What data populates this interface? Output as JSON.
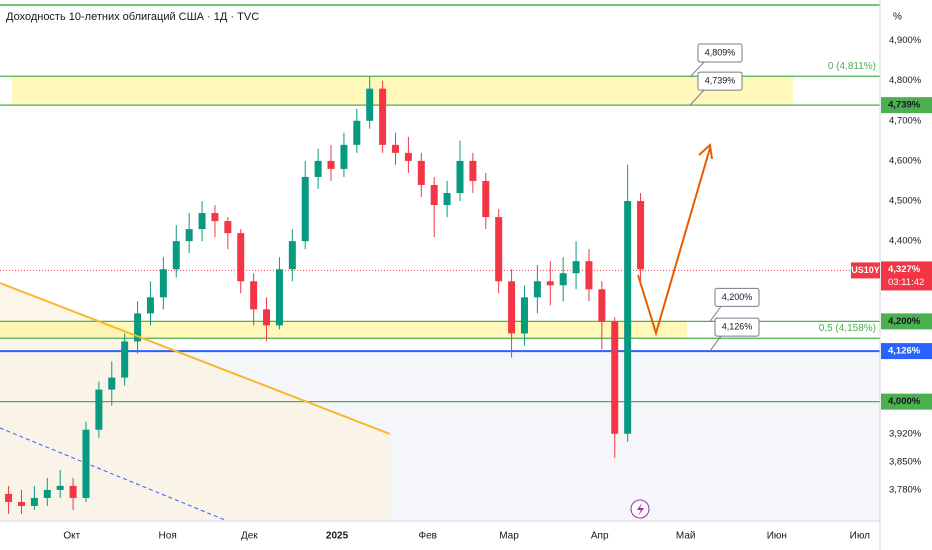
{
  "chart_data": {
    "type": "candlestick",
    "title": "Доходность 10-летних облигаций США · 1Д · TVC",
    "unit": "%",
    "up_color": "#089981",
    "down_color": "#f23645",
    "x": [
      2,
      5,
      8,
      11,
      14,
      17,
      20,
      23,
      26,
      29,
      32,
      35,
      38,
      41,
      44,
      47,
      50,
      53,
      56,
      59,
      62,
      65,
      68,
      71,
      74,
      77,
      80,
      83,
      86,
      89,
      92,
      95,
      98,
      101,
      104,
      107,
      110,
      113,
      116,
      119,
      122,
      125,
      128,
      131,
      134,
      137,
      140,
      143,
      146,
      149
    ],
    "open": [
      3.77,
      3.75,
      3.74,
      3.76,
      3.78,
      3.79,
      3.76,
      3.93,
      4.03,
      4.06,
      4.15,
      4.22,
      4.26,
      4.33,
      4.4,
      4.43,
      4.47,
      4.45,
      4.42,
      4.3,
      4.23,
      4.19,
      4.33,
      4.4,
      4.56,
      4.6,
      4.58,
      4.64,
      4.7,
      4.78,
      4.64,
      4.62,
      4.6,
      4.54,
      4.49,
      4.52,
      4.6,
      4.55,
      4.46,
      4.3,
      4.17,
      4.26,
      4.3,
      4.29,
      4.32,
      4.35,
      4.28,
      4.2,
      3.92,
      4.5
    ],
    "high": [
      3.79,
      3.78,
      3.79,
      3.81,
      3.83,
      3.81,
      3.95,
      4.05,
      4.1,
      4.17,
      4.25,
      4.3,
      4.36,
      4.44,
      4.47,
      4.5,
      4.49,
      4.46,
      4.43,
      4.32,
      4.26,
      4.36,
      4.43,
      4.6,
      4.63,
      4.64,
      4.67,
      4.73,
      4.81,
      4.8,
      4.67,
      4.66,
      4.62,
      4.56,
      4.55,
      4.65,
      4.62,
      4.57,
      4.48,
      4.33,
      4.29,
      4.34,
      4.35,
      4.36,
      4.4,
      4.38,
      4.3,
      4.21,
      4.59,
      4.52
    ],
    "low": [
      3.72,
      3.72,
      3.73,
      3.74,
      3.76,
      3.73,
      3.75,
      3.91,
      3.99,
      4.04,
      4.12,
      4.19,
      4.23,
      4.31,
      4.37,
      4.4,
      4.41,
      4.38,
      4.27,
      4.19,
      4.15,
      4.18,
      4.3,
      4.38,
      4.53,
      4.55,
      4.56,
      4.62,
      4.68,
      4.62,
      4.59,
      4.57,
      4.51,
      4.41,
      4.46,
      4.5,
      4.52,
      4.43,
      4.27,
      4.11,
      4.14,
      4.22,
      4.24,
      4.25,
      4.28,
      4.25,
      4.13,
      3.86,
      3.9,
      4.3
    ],
    "close": [
      3.75,
      3.74,
      3.76,
      3.78,
      3.79,
      3.76,
      3.93,
      4.03,
      4.06,
      4.15,
      4.22,
      4.26,
      4.33,
      4.4,
      4.43,
      4.47,
      4.45,
      4.42,
      4.3,
      4.23,
      4.19,
      4.33,
      4.4,
      4.56,
      4.6,
      4.58,
      4.64,
      4.7,
      4.78,
      4.64,
      4.62,
      4.6,
      4.54,
      4.49,
      4.52,
      4.6,
      4.55,
      4.46,
      4.3,
      4.17,
      4.26,
      4.3,
      4.29,
      4.32,
      4.35,
      4.28,
      4.2,
      3.92,
      4.5,
      4.33
    ],
    "xlim": [
      0,
      204.7
    ],
    "ylim": [
      3.705,
      5.001
    ],
    "xticks": [
      {
        "value": 16.7,
        "label": "Окт"
      },
      {
        "value": 39,
        "label": "Ноя"
      },
      {
        "value": 58,
        "label": "Дек"
      },
      {
        "value": 78.4,
        "label": "2025"
      },
      {
        "value": 99.5,
        "label": "Фев"
      },
      {
        "value": 118.4,
        "label": "Мар"
      },
      {
        "value": 139.5,
        "label": "Апр"
      },
      {
        "value": 159.5,
        "label": "Май"
      },
      {
        "value": 180.7,
        "label": "Июн"
      },
      {
        "value": 200,
        "label": "Июл"
      }
    ],
    "yticks": [
      {
        "value": 4.9,
        "label": "4,900%"
      },
      {
        "value": 4.8,
        "label": "4,800%"
      },
      {
        "value": 4.7,
        "label": "4,700%"
      },
      {
        "value": 4.6,
        "label": "4,600%"
      },
      {
        "value": 4.5,
        "label": "4,500%"
      },
      {
        "value": 4.4,
        "label": "4,400%"
      },
      {
        "value": 3.92,
        "label": "3,920%"
      },
      {
        "value": 3.85,
        "label": "3,850%"
      },
      {
        "value": 3.78,
        "label": "3,780%"
      }
    ],
    "zones": [
      {
        "from": 4.739,
        "to": 4.811
      },
      {
        "from": 4.158,
        "to": 4.2
      }
    ],
    "levels": [
      {
        "value": 4.811,
        "color": "#4caf50",
        "fib_label": "0 (4,811%)"
      },
      {
        "value": 4.739,
        "color": "#4caf50",
        "axis_label": "4,739%"
      },
      {
        "value": 4.2,
        "color": "#4caf50",
        "axis_label": "4,200%"
      },
      {
        "value": 4.158,
        "color": "#4caf50",
        "fib_label": "0,5 (4,158%)"
      },
      {
        "value": 4.126,
        "color": "#2962ff",
        "axis_label": "4,126%"
      },
      {
        "value": 4.0,
        "color": "#4caf50",
        "axis_label": "4,000%"
      }
    ],
    "callouts": [
      {
        "value": 4.809,
        "label": "4,809%"
      },
      {
        "value": 4.739,
        "label": "4,739%"
      },
      {
        "value": 4.2,
        "label": "4,200%"
      },
      {
        "value": 4.126,
        "label": "4,126%"
      }
    ],
    "current": {
      "symbol": "US10Y",
      "value": 4.327,
      "label": "4,327%",
      "countdown": "03:11:42",
      "color": "#f23645"
    }
  }
}
